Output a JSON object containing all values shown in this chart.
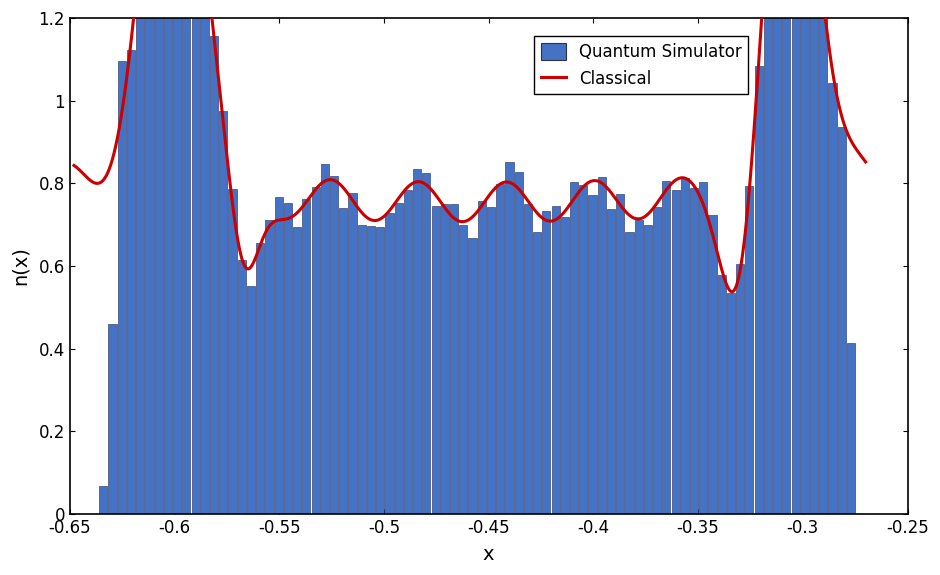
{
  "xlim": [
    -0.65,
    -0.25
  ],
  "ylim": [
    0,
    1.2
  ],
  "xlabel": "x",
  "ylabel": "n(x)",
  "bar_color": "#4472C4",
  "bar_edge_color": "#1f2d5a",
  "line_color": "#CC0000",
  "line_width": 2.2,
  "bar_edge_width": 0.4,
  "legend_labels": [
    "Quantum Simulator",
    "Classical"
  ],
  "xticks": [
    -0.65,
    -0.6,
    -0.55,
    -0.5,
    -0.45,
    -0.4,
    -0.35,
    -0.3,
    -0.25
  ],
  "yticks": [
    0,
    0.2,
    0.4,
    0.6,
    0.8,
    1.0,
    1.2
  ],
  "figsize": [
    9.4,
    5.75
  ],
  "dpi": 100
}
